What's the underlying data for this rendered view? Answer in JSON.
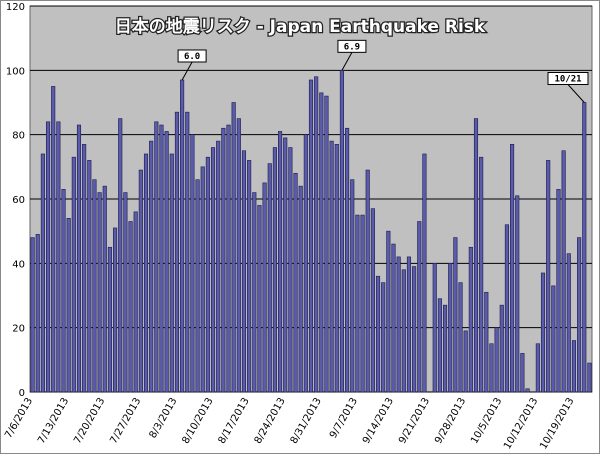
{
  "chart_data": {
    "type": "bar",
    "title": "日本の地震リスク - Japan Earthquake Risk",
    "categories": [
      "7/6/2013",
      null,
      null,
      null,
      null,
      null,
      null,
      "7/13/2013",
      null,
      null,
      null,
      null,
      null,
      null,
      "7/20/2013",
      null,
      null,
      null,
      null,
      null,
      null,
      "7/27/2013",
      null,
      null,
      null,
      null,
      null,
      null,
      "8/3/2013",
      null,
      null,
      null,
      null,
      null,
      null,
      "8/10/2013",
      null,
      null,
      null,
      null,
      null,
      null,
      "8/17/2013",
      null,
      null,
      null,
      null,
      null,
      null,
      "8/24/2013",
      null,
      null,
      null,
      null,
      null,
      null,
      "8/31/2013",
      null,
      null,
      null,
      null,
      null,
      null,
      "9/7/2013",
      null,
      null,
      null,
      null,
      null,
      null,
      "9/14/2013",
      null,
      null,
      null,
      null,
      null,
      null,
      "9/21/2013",
      null,
      null,
      null,
      null,
      null,
      null,
      "9/28/2013",
      null,
      null,
      null,
      null,
      null,
      null,
      "10/5/2013",
      null,
      null,
      null,
      null,
      null,
      null,
      "10/12/2013",
      null,
      null,
      null,
      null,
      null,
      null,
      "10/19/2013",
      null,
      null,
      null
    ],
    "values": [
      48,
      49,
      74,
      84,
      95,
      84,
      63,
      54,
      73,
      83,
      77,
      72,
      66,
      62,
      64,
      45,
      51,
      85,
      62,
      53,
      56,
      69,
      74,
      78,
      84,
      83,
      81,
      74,
      87,
      97,
      87,
      80,
      66,
      70,
      73,
      76,
      78,
      82,
      83,
      90,
      85,
      75,
      72,
      62,
      58,
      65,
      71,
      76,
      81,
      79,
      76,
      68,
      64,
      80,
      97,
      98,
      93,
      92,
      78,
      77,
      100,
      82,
      66,
      55,
      55,
      69,
      57,
      36,
      34,
      50,
      46,
      42,
      38,
      42,
      39,
      53,
      74,
      0,
      40,
      29,
      27,
      40,
      48,
      34,
      19,
      45,
      85,
      73,
      31,
      15,
      20,
      27,
      52,
      77,
      61,
      12,
      1,
      0,
      15,
      37,
      72,
      33,
      63,
      75,
      43,
      16,
      48,
      90,
      9
    ],
    "color": "#5b5bab",
    "ylim": [
      0,
      120
    ],
    "yticks": [
      0,
      20,
      40,
      60,
      80,
      100,
      120
    ],
    "grid": true,
    "annotations": [
      {
        "text": "6.0",
        "index": 29
      },
      {
        "text": "6.9",
        "index": 60
      },
      {
        "text": "10/21",
        "index": 107
      }
    ]
  }
}
